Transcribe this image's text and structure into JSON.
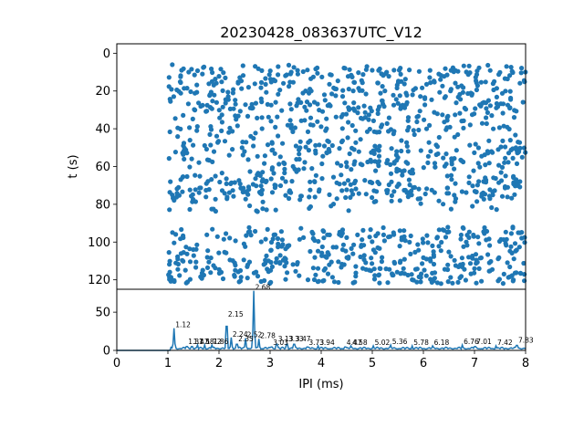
{
  "chart_data": [
    {
      "type": "scatter",
      "panel": "raster",
      "title": "20230428_083637UTC_V12",
      "ylabel": "t (s)",
      "xlabel": "",
      "xlim": [
        0,
        8
      ],
      "ylim": [
        125,
        -5
      ],
      "y_inverted": true,
      "yticks": [
        0,
        20,
        40,
        60,
        80,
        100,
        120
      ],
      "color": "#1f77b4",
      "grid": false,
      "point_count_estimate": 1400,
      "rows_with_many_spikes_s": [
        8,
        12,
        18,
        25,
        30,
        38,
        50,
        55,
        62,
        70,
        72,
        75,
        95,
        100,
        108,
        112,
        118,
        120
      ],
      "empty_band_s": [
        84,
        92
      ],
      "x_range_of_points_ms": [
        1.0,
        8.0
      ]
    },
    {
      "type": "line",
      "panel": "histogram",
      "xlabel": "IPI (ms)",
      "ylabel": "",
      "xlim": [
        0,
        8
      ],
      "ylim": [
        0,
        80
      ],
      "xticks": [
        0,
        1,
        2,
        3,
        4,
        5,
        6,
        7,
        8
      ],
      "yticks": [
        0,
        50
      ],
      "color": "#1f77b4",
      "grid": false,
      "peaks": [
        {
          "x": 1.12,
          "y": 29,
          "label": "1.12"
        },
        {
          "x": 1.37,
          "y": 7,
          "label": "1.37"
        },
        {
          "x": 1.47,
          "y": 7,
          "label": "1.47"
        },
        {
          "x": 1.58,
          "y": 7,
          "label": "1.58"
        },
        {
          "x": 1.72,
          "y": 7,
          "label": "1.72"
        },
        {
          "x": 1.86,
          "y": 7,
          "label": "1.86"
        },
        {
          "x": 2.15,
          "y": 43,
          "label": "2.15"
        },
        {
          "x": 2.24,
          "y": 17,
          "label": "2.24"
        },
        {
          "x": 2.35,
          "y": 11,
          "label": "2.35"
        },
        {
          "x": 2.52,
          "y": 16,
          "label": "2.52"
        },
        {
          "x": 2.68,
          "y": 78,
          "label": "2.68"
        },
        {
          "x": 2.78,
          "y": 15,
          "label": "2.78"
        },
        {
          "x": 3.03,
          "y": 6,
          "label": "3.03"
        },
        {
          "x": 3.13,
          "y": 11,
          "label": "3.13"
        },
        {
          "x": 3.33,
          "y": 11,
          "label": "3.33"
        },
        {
          "x": 3.47,
          "y": 11,
          "label": "3.47"
        },
        {
          "x": 3.73,
          "y": 6,
          "label": "3.73"
        },
        {
          "x": 3.94,
          "y": 6,
          "label": "3.94"
        },
        {
          "x": 4.47,
          "y": 6,
          "label": "4.47"
        },
        {
          "x": 4.58,
          "y": 6,
          "label": "4.58"
        },
        {
          "x": 5.02,
          "y": 6,
          "label": "5.02"
        },
        {
          "x": 5.36,
          "y": 7,
          "label": "5.36"
        },
        {
          "x": 5.78,
          "y": 6,
          "label": "5.78"
        },
        {
          "x": 6.18,
          "y": 6,
          "label": "6.18"
        },
        {
          "x": 6.76,
          "y": 7,
          "label": "6.76"
        },
        {
          "x": 7.01,
          "y": 7,
          "label": "7.01"
        },
        {
          "x": 7.42,
          "y": 6,
          "label": "7.42"
        },
        {
          "x": 7.83,
          "y": 9,
          "label": "7.83"
        }
      ],
      "baseline_level": 3
    }
  ]
}
